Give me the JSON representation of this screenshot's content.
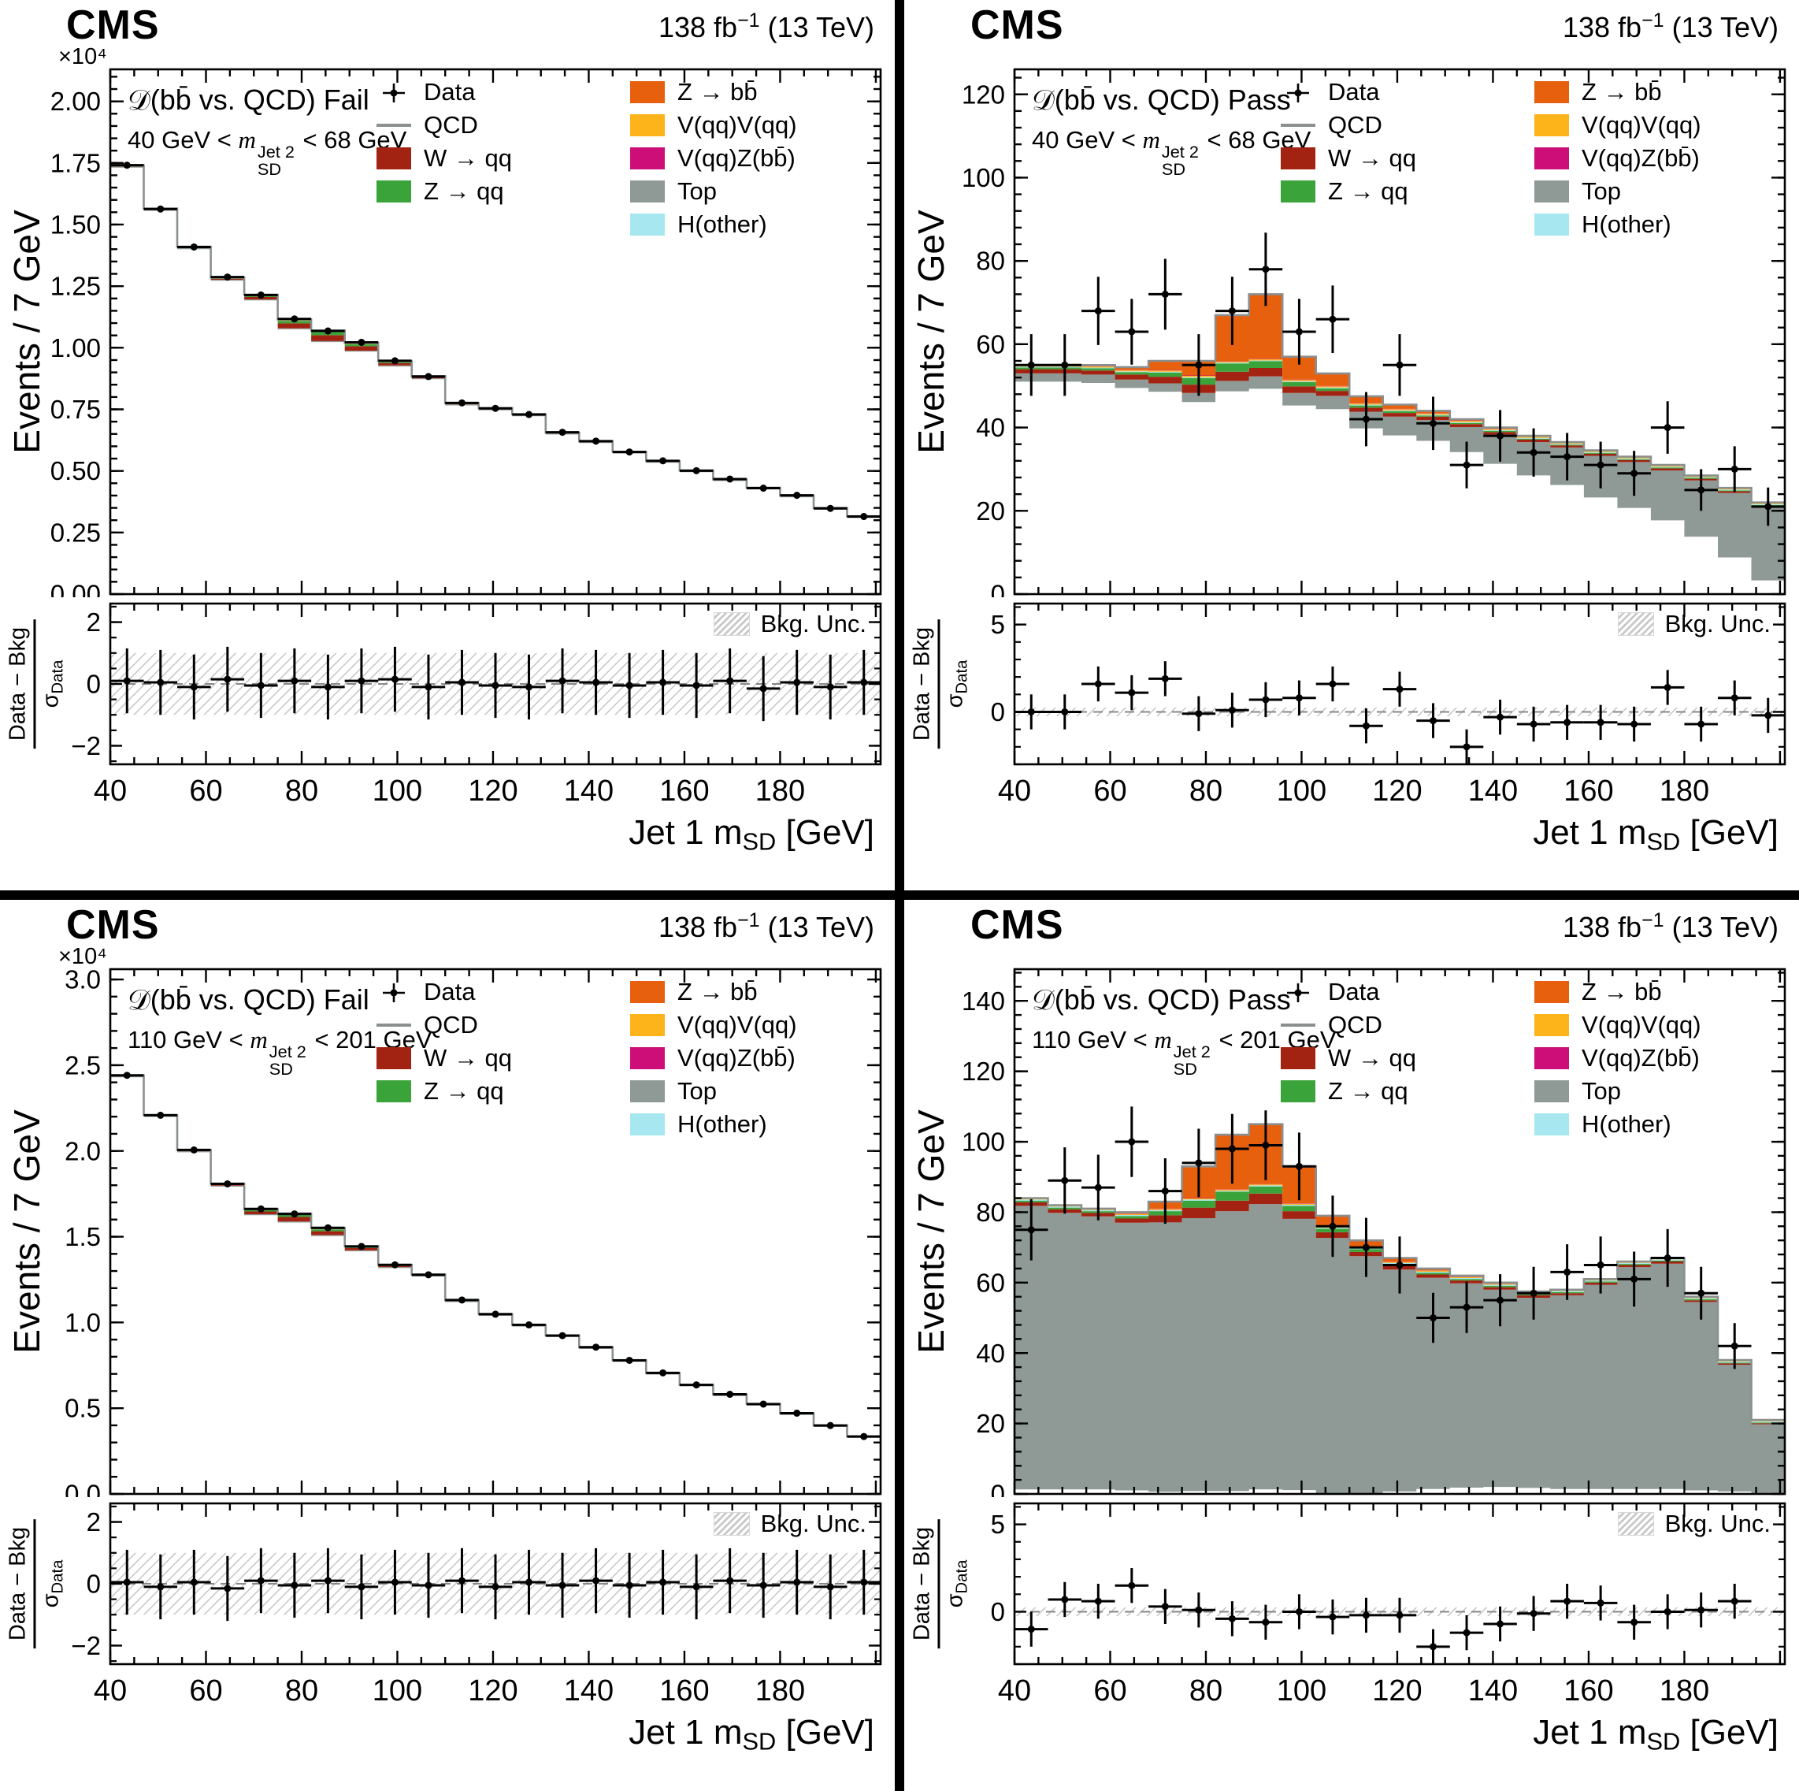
{
  "common": {
    "cms": "CMS",
    "lumi_pre": "138 fb",
    "lumi_sup": "−1",
    "lumi_post": " (13 TeV)",
    "ylabel": "Events / 7 GeV",
    "xlabel_pre": "Jet 1 m",
    "xlabel_sub": "SD",
    "xlabel_post": " [GeV]",
    "ratio_num": "Data − Bkg",
    "ratio_sigma": "σ",
    "ratio_sigma_sub": "Data",
    "bkg_unc_label": "Bkg. Unc.",
    "legend_col1": [
      {
        "label": "Data",
        "type": "data",
        "color": "#000000"
      },
      {
        "label": "QCD",
        "type": "line",
        "color": "#8a8f8f"
      },
      {
        "label": "W → qq",
        "type": "fill",
        "color": "#a32313"
      },
      {
        "label": "Z → qq",
        "type": "fill",
        "color": "#3aa33a"
      }
    ],
    "legend_col2": [
      {
        "label": "Z → bb̄",
        "type": "fill",
        "color": "#e7600e"
      },
      {
        "label": "V(qq)V(qq)",
        "type": "fill",
        "color": "#fdb31a"
      },
      {
        "label": "V(qq)Z(bb̄)",
        "type": "fill",
        "color": "#cd0e78"
      },
      {
        "label": "Top",
        "type": "fill",
        "color": "#8f9a96"
      },
      {
        "label": "H(other)",
        "type": "fill",
        "color": "#a7e7f0"
      }
    ]
  },
  "chart_data": [
    {
      "type": "histogram",
      "title": "𝒟(bb̄ vs. QCD) Fail",
      "selection": {
        "pre": "40 GeV < ",
        "m": "m",
        "sup": "Jet 2",
        "sub": "SD",
        "post": " < 68 GeV"
      },
      "xlabel": "Jet 1 m_SD [GeV]",
      "ylabel": "Events / 7 GeV",
      "y_scale": "×10⁴",
      "bins": {
        "start": 40,
        "width": 7,
        "count": 23
      },
      "xlim": [
        40,
        201
      ],
      "xmajor": 20,
      "xminor": 5,
      "ylim": [
        0,
        2.13
      ],
      "yticks": [
        0,
        0.25,
        0.5,
        0.75,
        1.0,
        1.25,
        1.5,
        1.75,
        2.0
      ],
      "ytick_labels": [
        "0.00",
        "0.25",
        "0.50",
        "0.75",
        "1.00",
        "1.25",
        "1.50",
        "1.75",
        "2.00"
      ],
      "yminor": 0.05,
      "qcd_line_color": "#8a8f8f",
      "total_bkg": [
        1.74,
        1.565,
        1.41,
        1.285,
        1.215,
        1.115,
        1.07,
        1.02,
        0.945,
        0.885,
        0.775,
        0.755,
        0.73,
        0.655,
        0.62,
        0.578,
        0.54,
        0.502,
        0.466,
        0.432,
        0.4,
        0.35,
        0.316
      ],
      "components": [
        {
          "name": "Top",
          "color": "#8f9a96",
          "flat": 0.004
        },
        {
          "name": "W → qq",
          "color": "#a32313",
          "values": [
            0.002,
            0.002,
            0.003,
            0.004,
            0.01,
            0.02,
            0.024,
            0.018,
            0.009,
            0.004,
            0.002,
            0.002,
            0.001,
            0.001,
            0.001,
            0.001,
            0.001,
            0.001,
            0.001,
            0.001,
            0.001,
            0.001,
            0.001
          ]
        },
        {
          "name": "Z → qq",
          "color": "#3aa33a",
          "values": [
            0.001,
            0.001,
            0.001,
            0.002,
            0.005,
            0.01,
            0.012,
            0.008,
            0.004,
            0.002,
            0.001,
            0.001,
            0.001,
            0,
            0,
            0,
            0,
            0,
            0,
            0,
            0,
            0,
            0
          ]
        },
        {
          "name": "H(other)",
          "color": "#a7e7f0",
          "flat": 0.0005
        },
        {
          "name": "V(qq)V(qq)",
          "color": "#fdb31a",
          "flat": 0.001
        },
        {
          "name": "V(qq)Z(bb̄)",
          "color": "#cd0e78",
          "flat": 0.0005
        },
        {
          "name": "Z → bb̄",
          "color": "#e7600e",
          "values": [
            0,
            0,
            0,
            0.001,
            0.002,
            0.004,
            0.005,
            0.004,
            0.002,
            0.001,
            0,
            0,
            0,
            0,
            0,
            0,
            0,
            0,
            0,
            0,
            0,
            0,
            0
          ]
        }
      ],
      "data": [
        1.741,
        1.563,
        1.409,
        1.287,
        1.214,
        1.117,
        1.068,
        1.022,
        0.947,
        0.883,
        0.776,
        0.754,
        0.729,
        0.657,
        0.621,
        0.577,
        0.541,
        0.501,
        0.467,
        0.43,
        0.401,
        0.348,
        0.315
      ],
      "data_err": 0.013,
      "ratio": [
        0.1,
        0.05,
        -0.1,
        0.15,
        -0.05,
        0.1,
        -0.1,
        0.1,
        0.15,
        -0.1,
        0.05,
        -0.05,
        -0.1,
        0.1,
        0.05,
        -0.05,
        0.05,
        -0.05,
        0.1,
        -0.15,
        0.05,
        -0.1,
        0.05
      ],
      "ratio_err": 1.05,
      "ratio_band": 1.0,
      "ratio_lim": [
        -2.6,
        2.6
      ],
      "ratio_ticks": [
        -2,
        0,
        2
      ],
      "ratio_tick_labels": [
        "−2",
        "0",
        "2"
      ],
      "ratio_minor": 0.5
    },
    {
      "type": "histogram",
      "title": "𝒟(bb̄ vs. QCD) Pass",
      "selection": {
        "pre": "40 GeV < ",
        "m": "m",
        "sup": "Jet 2",
        "sub": "SD",
        "post": " < 68 GeV"
      },
      "xlabel": "Jet 1 m_SD [GeV]",
      "ylabel": "Events / 7 GeV",
      "y_scale": "",
      "bins": {
        "start": 40,
        "width": 7,
        "count": 23
      },
      "xlim": [
        40,
        201
      ],
      "xmajor": 20,
      "xminor": 5,
      "ylim": [
        0,
        126
      ],
      "yticks": [
        0,
        20,
        40,
        60,
        80,
        100,
        120
      ],
      "ytick_labels": [
        "0",
        "20",
        "40",
        "60",
        "80",
        "100",
        "120"
      ],
      "yminor": 4,
      "qcd_line_color": "#8a8f8f",
      "total_bkg": [
        55,
        55,
        55,
        54.5,
        56,
        56,
        67,
        72,
        57,
        53,
        47.5,
        45.5,
        44,
        42,
        40,
        38,
        36.5,
        34.5,
        33,
        31,
        28.5,
        25.5,
        22
      ],
      "components": [
        {
          "name": "Top",
          "color": "#8f9a96",
          "values": [
            2,
            2,
            2,
            2,
            2,
            2.2,
            2.5,
            3,
            3,
            3.2,
            4,
            4.5,
            5,
            6,
            7,
            8,
            9,
            10,
            11,
            12,
            13.5,
            15.5,
            17.5
          ]
        },
        {
          "name": "W → qq",
          "color": "#a32313",
          "values": [
            1,
            1,
            1,
            1.2,
            1.6,
            2,
            2.2,
            2,
            1.6,
            1.2,
            1,
            0.9,
            0.8,
            0.7,
            0.6,
            0.6,
            0.5,
            0.5,
            0.5,
            0.5,
            0.4,
            0.4,
            0.4
          ]
        },
        {
          "name": "Z → qq",
          "color": "#3aa33a",
          "values": [
            0.4,
            0.4,
            0.5,
            0.6,
            1,
            1.6,
            2,
            1.6,
            1,
            0.6,
            0.5,
            0.4,
            0.3,
            0.3,
            0.3,
            0.2,
            0.2,
            0.2,
            0.2,
            0.2,
            0.2,
            0.2,
            0.2
          ]
        },
        {
          "name": "H(other)",
          "color": "#a7e7f0",
          "flat": 0.2
        },
        {
          "name": "V(qq)V(qq)",
          "color": "#fdb31a",
          "flat": 0.3
        },
        {
          "name": "V(qq)Z(bb̄)",
          "color": "#cd0e78",
          "flat": 0.1
        },
        {
          "name": "Z → bb̄",
          "color": "#e7600e",
          "values": [
            0,
            0,
            0.2,
            0.6,
            2.2,
            3.5,
            11,
            15.5,
            5.5,
            3,
            1.6,
            1,
            0.5,
            0.3,
            0.2,
            0.1,
            0,
            0,
            0,
            0,
            0,
            0,
            0
          ]
        }
      ],
      "data": [
        55,
        55,
        68,
        63,
        72,
        55,
        68,
        78,
        63,
        66,
        42,
        55,
        41,
        31,
        38,
        34,
        33,
        31,
        29,
        40,
        25,
        30,
        21
      ],
      "data_err": [
        7.4,
        7.4,
        8.2,
        7.9,
        8.5,
        7.4,
        8.2,
        8.8,
        7.9,
        8.1,
        6.5,
        7.4,
        6.4,
        5.6,
        6.2,
        5.8,
        5.7,
        5.6,
        5.4,
        6.3,
        5.0,
        5.5,
        4.6
      ],
      "ratio": [
        0.0,
        0.0,
        1.6,
        1.1,
        1.9,
        -0.1,
        0.1,
        0.7,
        0.8,
        1.6,
        -0.8,
        1.3,
        -0.5,
        -2.0,
        -0.3,
        -0.7,
        -0.6,
        -0.6,
        -0.7,
        1.4,
        -0.7,
        0.8,
        -0.2
      ],
      "ratio_err": 1.0,
      "ratio_band": 0.25,
      "ratio_lim": [
        -3.0,
        6.2
      ],
      "ratio_ticks": [
        0,
        5
      ],
      "ratio_tick_labels": [
        "0",
        "5"
      ],
      "ratio_minor": 1
    },
    {
      "type": "histogram",
      "title": "𝒟(bb̄ vs. QCD) Fail",
      "selection": {
        "pre": "110 GeV < ",
        "m": "m",
        "sup": "Jet 2",
        "sub": "SD",
        "post": " < 201 GeV"
      },
      "xlabel": "Jet 1 m_SD [GeV]",
      "ylabel": "Events / 7 GeV",
      "y_scale": "×10⁴",
      "bins": {
        "start": 40,
        "width": 7,
        "count": 23
      },
      "xlim": [
        40,
        201
      ],
      "xmajor": 20,
      "xminor": 5,
      "ylim": [
        0,
        3.06
      ],
      "yticks": [
        0,
        0.5,
        1.0,
        1.5,
        2.0,
        2.5,
        3.0
      ],
      "ytick_labels": [
        "0.0",
        "0.5",
        "1.0",
        "1.5",
        "2.0",
        "2.5",
        "3.0"
      ],
      "yminor": 0.1,
      "qcd_line_color": "#8a8f8f",
      "total_bkg": [
        2.44,
        2.21,
        2.005,
        1.81,
        1.66,
        1.635,
        1.55,
        1.445,
        1.335,
        1.28,
        1.13,
        1.05,
        0.985,
        0.925,
        0.855,
        0.78,
        0.705,
        0.637,
        0.58,
        0.525,
        0.47,
        0.4,
        0.336
      ],
      "components": [
        {
          "name": "Top",
          "color": "#8f9a96",
          "flat": 0.006
        },
        {
          "name": "W → qq",
          "color": "#a32313",
          "values": [
            0.002,
            0.002,
            0.003,
            0.006,
            0.016,
            0.026,
            0.022,
            0.013,
            0.006,
            0.003,
            0.002,
            0.002,
            0.001,
            0.001,
            0.001,
            0.001,
            0.001,
            0.001,
            0.001,
            0.001,
            0.001,
            0.001,
            0.001
          ]
        },
        {
          "name": "Z → qq",
          "color": "#3aa33a",
          "values": [
            0.001,
            0.001,
            0.002,
            0.003,
            0.008,
            0.013,
            0.011,
            0.006,
            0.003,
            0.001,
            0.001,
            0.001,
            0,
            0,
            0,
            0,
            0,
            0,
            0,
            0,
            0,
            0,
            0
          ]
        },
        {
          "name": "H(other)",
          "color": "#a7e7f0",
          "flat": 0.0005
        },
        {
          "name": "V(qq)V(qq)",
          "color": "#fdb31a",
          "flat": 0.001
        },
        {
          "name": "V(qq)Z(bb̄)",
          "color": "#cd0e78",
          "flat": 0.0005
        },
        {
          "name": "Z → bb̄",
          "color": "#e7600e",
          "values": [
            0,
            0,
            0,
            0.001,
            0.003,
            0.005,
            0.005,
            0.003,
            0.001,
            0,
            0,
            0,
            0,
            0,
            0,
            0,
            0,
            0,
            0,
            0,
            0,
            0,
            0
          ]
        }
      ],
      "data": [
        2.441,
        2.208,
        2.006,
        1.808,
        1.662,
        1.633,
        1.552,
        1.443,
        1.336,
        1.278,
        1.131,
        1.048,
        0.986,
        0.923,
        0.856,
        0.779,
        0.706,
        0.636,
        0.581,
        0.524,
        0.471,
        0.399,
        0.335
      ],
      "data_err": 0.016,
      "ratio": [
        0.05,
        -0.1,
        0.05,
        -0.15,
        0.1,
        -0.05,
        0.1,
        -0.1,
        0.05,
        -0.05,
        0.1,
        -0.1,
        0.05,
        -0.05,
        0.1,
        -0.05,
        0.05,
        -0.1,
        0.1,
        -0.05,
        0.05,
        -0.1,
        0.05
      ],
      "ratio_err": 1.05,
      "ratio_band": 1.0,
      "ratio_lim": [
        -2.6,
        2.6
      ],
      "ratio_ticks": [
        -2,
        0,
        2
      ],
      "ratio_tick_labels": [
        "−2",
        "0",
        "2"
      ],
      "ratio_minor": 0.5
    },
    {
      "type": "histogram",
      "title": "𝒟(bb̄ vs. QCD) Pass",
      "selection": {
        "pre": "110 GeV < ",
        "m": "m",
        "sup": "Jet 2",
        "sub": "SD",
        "post": " < 201 GeV"
      },
      "xlabel": "Jet 1 m_SD [GeV]",
      "ylabel": "Events / 7 GeV",
      "y_scale": "",
      "bins": {
        "start": 40,
        "width": 7,
        "count": 23
      },
      "xlim": [
        40,
        201
      ],
      "xmajor": 20,
      "xminor": 5,
      "ylim": [
        0,
        149
      ],
      "yticks": [
        0,
        20,
        40,
        60,
        80,
        100,
        120,
        140
      ],
      "ytick_labels": [
        "0",
        "20",
        "40",
        "60",
        "80",
        "100",
        "120",
        "140"
      ],
      "yminor": 4,
      "qcd_line_color": "#8a8f8f",
      "total_bkg": [
        84,
        82,
        81,
        80,
        83,
        93,
        102,
        105,
        93,
        79,
        72,
        67,
        64,
        62,
        60,
        57.5,
        58,
        61,
        66,
        67,
        56,
        38,
        21
      ],
      "components": [
        {
          "name": "Top",
          "color": "#8f9a96",
          "values": [
            80.5,
            78.5,
            77.5,
            76,
            76.5,
            77.5,
            79.5,
            81,
            77,
            72.5,
            67.5,
            63,
            60,
            58,
            56,
            54,
            55,
            58,
            63,
            64,
            53.5,
            36,
            19.5
          ]
        },
        {
          "name": "W → qq",
          "color": "#a32313",
          "values": [
            1,
            1,
            1,
            1.2,
            2,
            3,
            3,
            3,
            2.2,
            1.6,
            1.2,
            1,
            0.9,
            0.8,
            0.7,
            0.7,
            0.6,
            0.6,
            0.6,
            0.6,
            0.5,
            0.4,
            0.3
          ]
        },
        {
          "name": "Z → qq",
          "color": "#3aa33a",
          "values": [
            0.5,
            0.5,
            0.5,
            0.7,
            1.2,
            2,
            2.5,
            2,
            1.5,
            1,
            0.8,
            0.6,
            0.5,
            0.4,
            0.4,
            0.3,
            0.3,
            0.3,
            0.3,
            0.3,
            0.3,
            0.2,
            0.2
          ]
        },
        {
          "name": "H(other)",
          "color": "#a7e7f0",
          "flat": 0.3
        },
        {
          "name": "V(qq)V(qq)",
          "color": "#fdb31a",
          "flat": 0.3
        },
        {
          "name": "V(qq)Z(bb̄)",
          "color": "#cd0e78",
          "flat": 0.1
        },
        {
          "name": "Z → bb̄",
          "color": "#e7600e",
          "values": [
            0,
            0,
            0,
            0.4,
            2,
            9,
            15.5,
            17,
            10.5,
            3,
            1.8,
            1,
            0.5,
            0.3,
            0.2,
            0.1,
            0,
            0,
            0,
            0,
            0,
            0,
            0
          ]
        }
      ],
      "data": [
        75,
        89,
        87,
        100,
        86,
        94,
        98,
        99,
        93,
        76,
        70,
        65,
        50,
        53,
        55,
        57,
        63,
        65,
        61,
        67,
        57,
        42,
        null
      ],
      "data_err": [
        8.7,
        9.4,
        9.3,
        10,
        9.3,
        9.7,
        9.9,
        9.9,
        9.6,
        8.7,
        8.4,
        8.1,
        7.1,
        7.3,
        7.4,
        7.5,
        7.9,
        8.1,
        7.8,
        8.2,
        7.5,
        6.5,
        6.4
      ],
      "ratio": [
        -1.0,
        0.7,
        0.6,
        1.5,
        0.3,
        0.1,
        -0.4,
        -0.6,
        0.0,
        -0.3,
        -0.2,
        -0.2,
        -2.0,
        -1.2,
        -0.7,
        -0.1,
        0.6,
        0.5,
        -0.6,
        0.0,
        0.1,
        0.6,
        null
      ],
      "ratio_err": 1.0,
      "ratio_band": 0.25,
      "ratio_lim": [
        -3.0,
        6.2
      ],
      "ratio_ticks": [
        0,
        5
      ],
      "ratio_tick_labels": [
        "0",
        "5"
      ],
      "ratio_minor": 1
    }
  ]
}
